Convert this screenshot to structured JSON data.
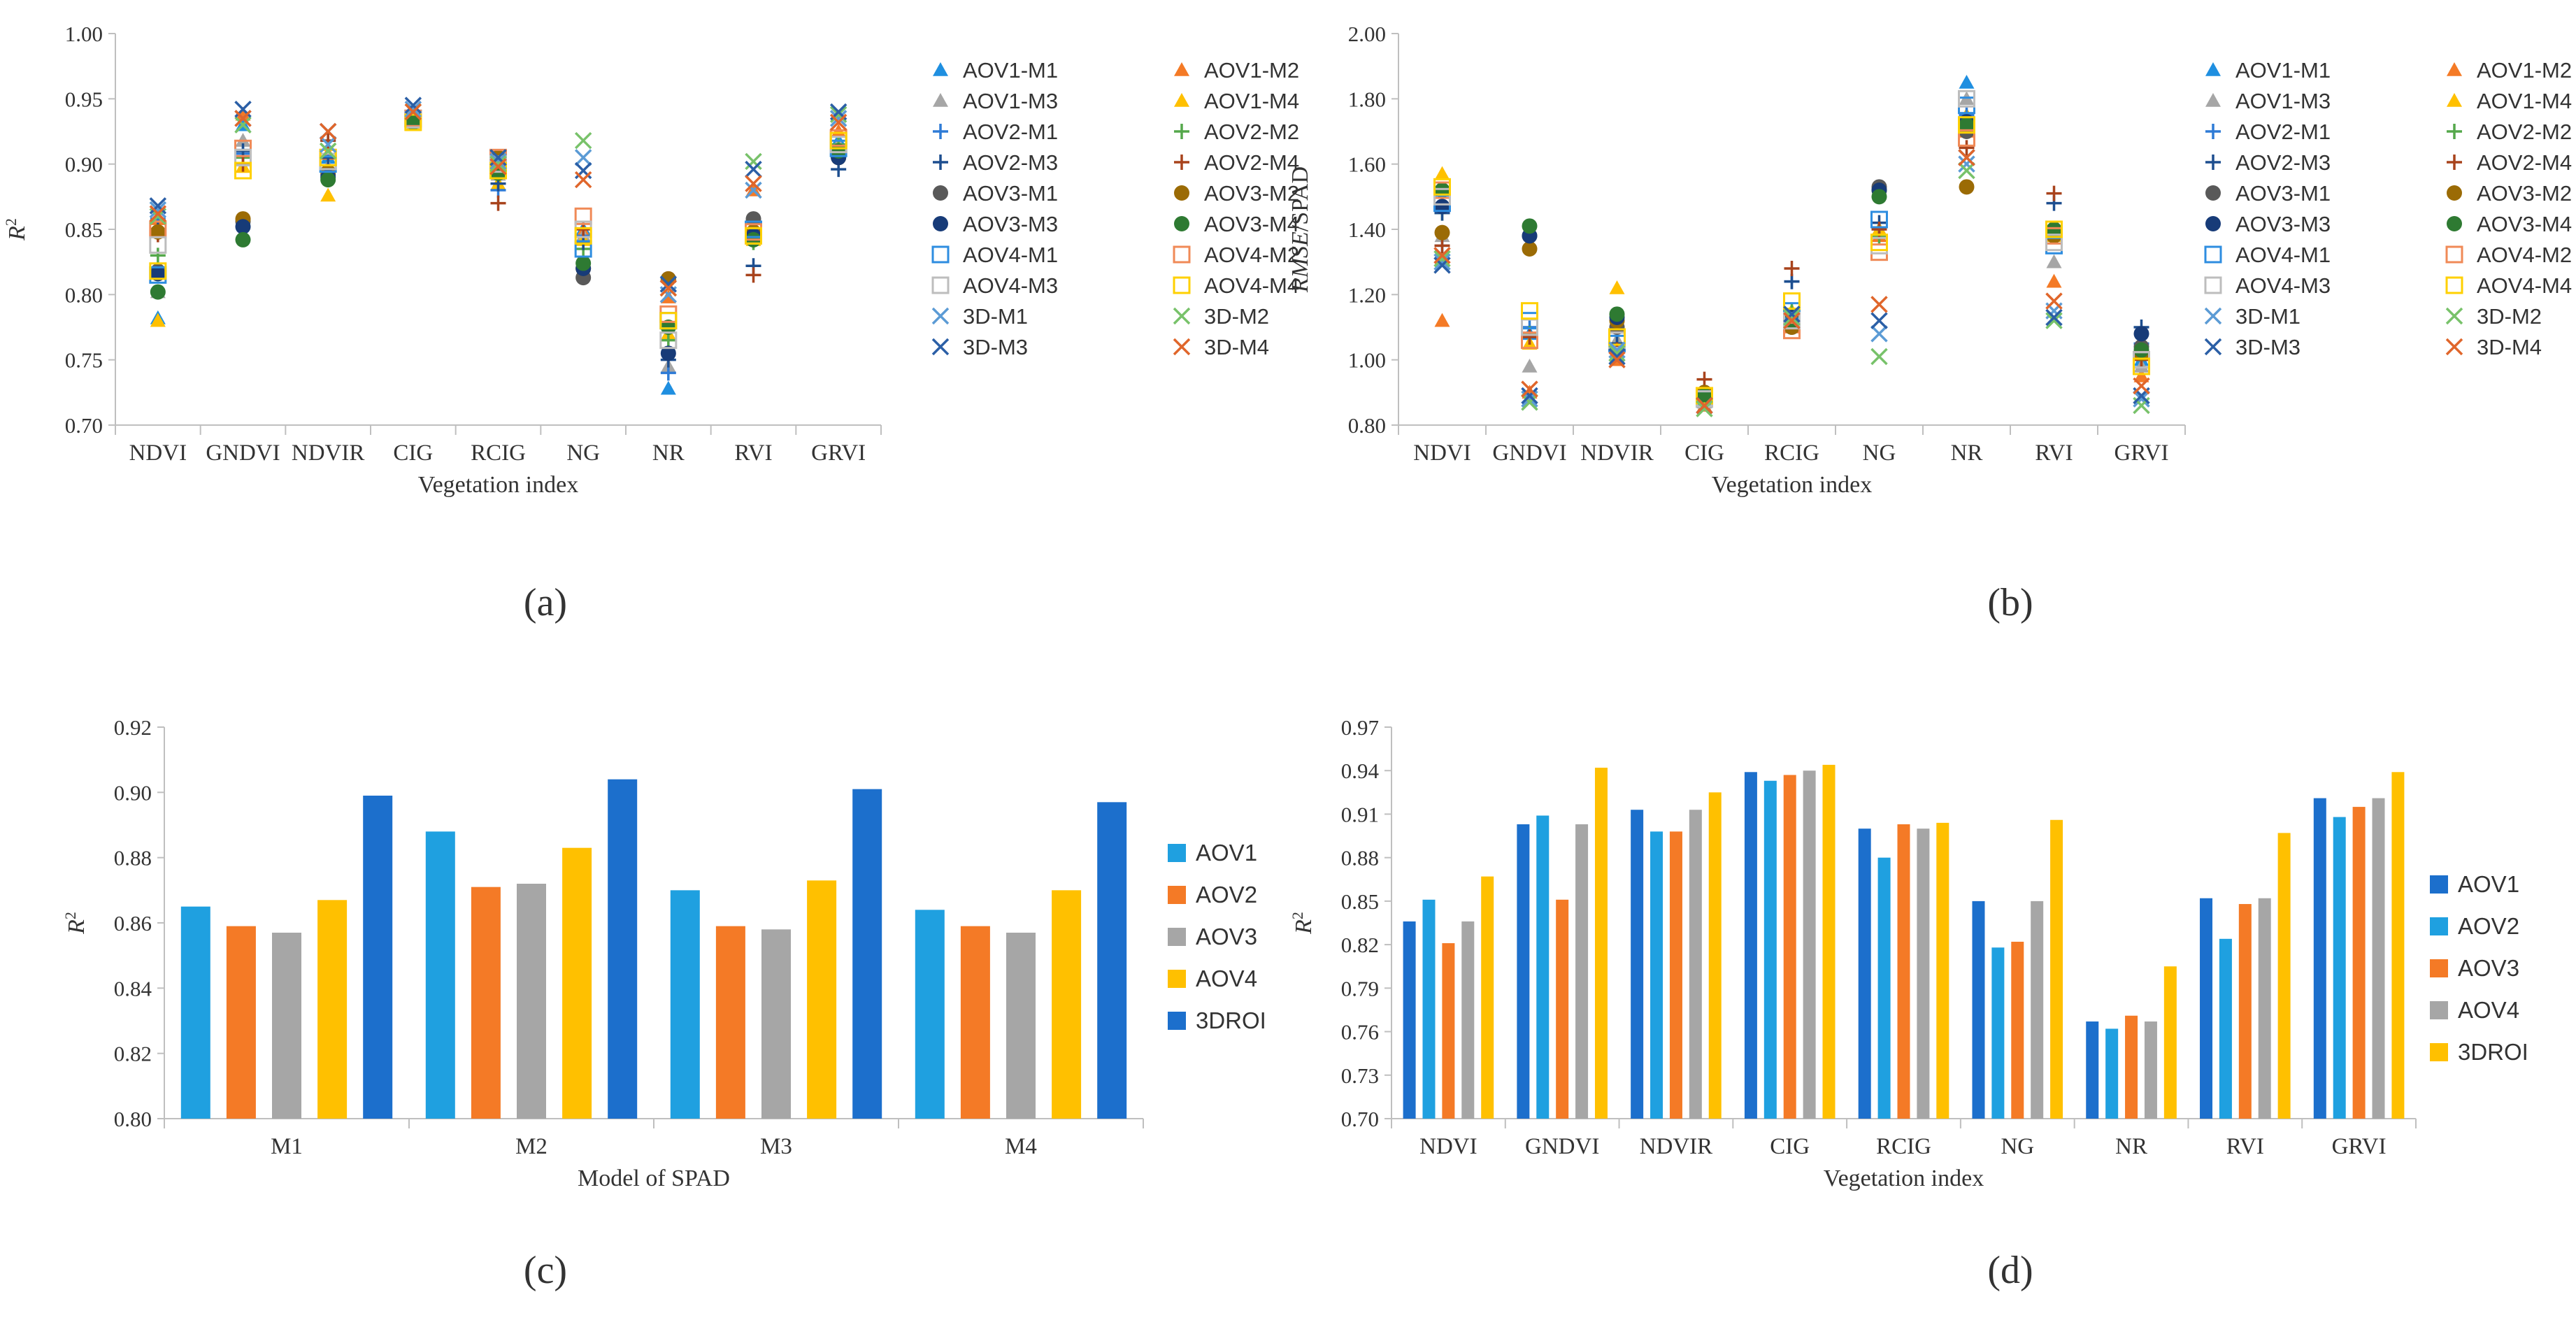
{
  "colors": {
    "AOV1-M1": "#1f8fe0",
    "AOV1-M2": "#f47a26",
    "AOV1-M3": "#a6a6a6",
    "AOV1-M4": "#ffc000",
    "AOV2-M1": "#2e7bd6",
    "AOV2-M2": "#55a84b",
    "AOV2-M3": "#1d4e8f",
    "AOV2-M4": "#a8431c",
    "AOV3-M1": "#595959",
    "AOV3-M2": "#9b6b05",
    "AOV3-M3": "#173b78",
    "AOV3-M4": "#2e7a32",
    "AOV4-M1": "#2e8de0",
    "AOV4-M2": "#f08a57",
    "AOV4-M3": "#bdbdbd",
    "AOV4-M4": "#ffd000",
    "3D-M1": "#5b9bd5",
    "3D-M2": "#78c26a",
    "3D-M3": "#2b5fa6",
    "3D-M4": "#e0662b",
    "bar_c": [
      "#1fa0e0",
      "#f47a26",
      "#a6a6a6",
      "#ffc000",
      "#1c6fcc"
    ],
    "bar_d": [
      "#1c6fcc",
      "#1fa0e0",
      "#f47a26",
      "#a6a6a6",
      "#ffc000"
    ],
    "axis": "#bfbfbf",
    "text": "#333333"
  },
  "chart_data": [
    {
      "panel": "a",
      "type": "scatter",
      "caption": "(a)",
      "ylabel_main": "R",
      "ylabel_sup": "2",
      "xlabel": "Vegetation index",
      "categories": [
        "NDVI",
        "GNDVI",
        "NDVIR",
        "CIG",
        "RCIG",
        "NG",
        "NR",
        "RVI",
        "GRVI"
      ],
      "ylim": [
        0.7,
        1.0
      ],
      "yticks": [
        "0.70",
        "0.75",
        "0.80",
        "0.85",
        "0.90",
        "0.95",
        "1.00"
      ],
      "legend": [
        "AOV1-M1",
        "AOV1-M2",
        "AOV1-M3",
        "AOV1-M4",
        "AOV2-M1",
        "AOV2-M2",
        "AOV2-M3",
        "AOV2-M4",
        "AOV3-M1",
        "AOV3-M2",
        "AOV3-M3",
        "AOV3-M4",
        "AOV4-M1",
        "AOV4-M2",
        "AOV4-M3",
        "AOV4-M4",
        "3D-M1",
        "3D-M2",
        "3D-M3",
        "3D-M4"
      ],
      "series": [
        {
          "name": "AOV1-M1",
          "marker": "triangle",
          "values": [
            0.782,
            0.93,
            0.905,
            0.94,
            0.895,
            0.85,
            0.728,
            0.848,
            0.918
          ]
        },
        {
          "name": "AOV1-M2",
          "marker": "triangle",
          "values": [
            0.858,
            0.938,
            0.908,
            0.938,
            0.902,
            0.848,
            0.798,
            0.88,
            0.925
          ]
        },
        {
          "name": "AOV1-M3",
          "marker": "triangle",
          "values": [
            0.802,
            0.918,
            0.898,
            0.935,
            0.892,
            0.845,
            0.745,
            0.858,
            0.915
          ]
        },
        {
          "name": "AOV1-M4",
          "marker": "triangle",
          "values": [
            0.78,
            0.898,
            0.876,
            0.93,
            0.885,
            0.842,
            0.77,
            0.842,
            0.91
          ]
        },
        {
          "name": "AOV2-M1",
          "marker": "plus",
          "values": [
            0.858,
            0.908,
            0.918,
            0.94,
            0.88,
            0.845,
            0.74,
            0.848,
            0.91
          ]
        },
        {
          "name": "AOV2-M2",
          "marker": "plus",
          "values": [
            0.83,
            0.905,
            0.896,
            0.935,
            0.89,
            0.835,
            0.765,
            0.84,
            0.915
          ]
        },
        {
          "name": "AOV2-M3",
          "marker": "plus",
          "values": [
            0.85,
            0.91,
            0.905,
            0.938,
            0.885,
            0.84,
            0.75,
            0.822,
            0.896
          ]
        },
        {
          "name": "AOV2-M4",
          "marker": "plus",
          "values": [
            0.846,
            0.9,
            0.918,
            0.932,
            0.87,
            0.85,
            0.81,
            0.815,
            0.908
          ]
        },
        {
          "name": "AOV3-M1",
          "marker": "circle",
          "values": [
            0.818,
            0.856,
            0.892,
            0.932,
            0.9,
            0.813,
            0.812,
            0.858,
            0.906
          ]
        },
        {
          "name": "AOV3-M2",
          "marker": "circle",
          "values": [
            0.848,
            0.858,
            0.894,
            0.935,
            0.905,
            0.82,
            0.812,
            0.848,
            0.905
          ]
        },
        {
          "name": "AOV3-M3",
          "marker": "circle",
          "values": [
            0.816,
            0.852,
            0.89,
            0.934,
            0.898,
            0.82,
            0.755,
            0.845,
            0.905
          ]
        },
        {
          "name": "AOV3-M4",
          "marker": "circle",
          "values": [
            0.802,
            0.842,
            0.888,
            0.932,
            0.893,
            0.824,
            0.775,
            0.842,
            0.91
          ]
        },
        {
          "name": "AOV4-M1",
          "marker": "square",
          "values": [
            0.815,
            0.905,
            0.9,
            0.935,
            0.895,
            0.835,
            0.78,
            0.85,
            0.912
          ]
        },
        {
          "name": "AOV4-M2",
          "marker": "square",
          "values": [
            0.85,
            0.912,
            0.905,
            0.935,
            0.905,
            0.86,
            0.785,
            0.848,
            0.92
          ]
        },
        {
          "name": "AOV4-M3",
          "marker": "square",
          "values": [
            0.838,
            0.905,
            0.902,
            0.934,
            0.9,
            0.85,
            0.765,
            0.845,
            0.915
          ]
        },
        {
          "name": "AOV4-M4",
          "marker": "square",
          "values": [
            0.818,
            0.895,
            0.905,
            0.932,
            0.895,
            0.845,
            0.78,
            0.845,
            0.918
          ]
        },
        {
          "name": "3D-M1",
          "marker": "x",
          "values": [
            0.865,
            0.935,
            0.915,
            0.942,
            0.902,
            0.905,
            0.8,
            0.88,
            0.935
          ]
        },
        {
          "name": "3D-M2",
          "marker": "x",
          "values": [
            0.86,
            0.93,
            0.91,
            0.94,
            0.9,
            0.918,
            0.805,
            0.902,
            0.938
          ]
        },
        {
          "name": "3D-M3",
          "marker": "x",
          "values": [
            0.868,
            0.942,
            0.925,
            0.945,
            0.905,
            0.895,
            0.808,
            0.896,
            0.94
          ]
        },
        {
          "name": "3D-M4",
          "marker": "x",
          "values": [
            0.862,
            0.935,
            0.925,
            0.94,
            0.898,
            0.888,
            0.805,
            0.885,
            0.932
          ]
        }
      ]
    },
    {
      "panel": "b",
      "type": "scatter",
      "caption": "(b)",
      "ylabel_main": "RMSE",
      "ylabel_suffix": "/SPAD",
      "xlabel": "Vegetation index",
      "categories": [
        "NDVI",
        "GNDVI",
        "NDVIR",
        "CIG",
        "RCIG",
        "NG",
        "NR",
        "RVI",
        "GRVI"
      ],
      "ylim": [
        0.8,
        2.0
      ],
      "yticks": [
        "0.80",
        "1.00",
        "1.20",
        "1.40",
        "1.60",
        "1.80",
        "2.00"
      ],
      "legend": [
        "AOV1-M1",
        "AOV1-M2",
        "AOV1-M3",
        "AOV1-M4",
        "AOV2-M1",
        "AOV2-M2",
        "AOV2-M3",
        "AOV2-M4",
        "AOV3-M1",
        "AOV3-M2",
        "AOV3-M3",
        "AOV3-M4",
        "AOV4-M1",
        "AOV4-M2",
        "AOV4-M3",
        "AOV4-M4",
        "3D-M1",
        "3D-M2",
        "3D-M3",
        "3D-M4"
      ],
      "series": [
        {
          "name": "AOV1-M1",
          "marker": "triangle",
          "values": [
            1.52,
            1.08,
            1.05,
            0.88,
            1.12,
            1.38,
            1.85,
            1.38,
            1.0
          ]
        },
        {
          "name": "AOV1-M2",
          "marker": "triangle",
          "values": [
            1.12,
            0.9,
            1.0,
            0.86,
            1.1,
            1.38,
            1.7,
            1.24,
            0.95
          ]
        },
        {
          "name": "AOV1-M3",
          "marker": "triangle",
          "values": [
            1.38,
            0.98,
            1.06,
            0.87,
            1.12,
            1.4,
            1.8,
            1.3,
            0.98
          ]
        },
        {
          "name": "AOV1-M4",
          "marker": "triangle",
          "values": [
            1.57,
            1.05,
            1.22,
            0.9,
            1.15,
            1.4,
            1.75,
            1.38,
            1.02
          ]
        },
        {
          "name": "AOV2-M1",
          "marker": "plus",
          "values": [
            1.35,
            1.1,
            1.05,
            0.88,
            1.24,
            1.4,
            1.75,
            1.38,
            1.05
          ]
        },
        {
          "name": "AOV2-M2",
          "marker": "plus",
          "values": [
            1.45,
            1.08,
            1.05,
            0.87,
            1.15,
            1.38,
            1.72,
            1.4,
            1.0
          ]
        },
        {
          "name": "AOV2-M3",
          "marker": "plus",
          "values": [
            1.45,
            1.07,
            1.05,
            0.87,
            1.24,
            1.42,
            1.72,
            1.48,
            1.1
          ]
        },
        {
          "name": "AOV2-M4",
          "marker": "plus",
          "values": [
            1.35,
            1.07,
            1.03,
            0.94,
            1.28,
            1.4,
            1.65,
            1.51,
            1.0
          ]
        },
        {
          "name": "AOV3-M1",
          "marker": "circle",
          "values": [
            1.52,
            1.38,
            1.1,
            0.9,
            1.1,
            1.53,
            1.7,
            1.38,
            1.04
          ]
        },
        {
          "name": "AOV3-M2",
          "marker": "circle",
          "values": [
            1.39,
            1.34,
            1.12,
            0.9,
            1.1,
            1.52,
            1.53,
            1.38,
            1.02
          ]
        },
        {
          "name": "AOV3-M3",
          "marker": "circle",
          "values": [
            1.47,
            1.38,
            1.13,
            0.88,
            1.13,
            1.52,
            1.73,
            1.4,
            1.08
          ]
        },
        {
          "name": "AOV3-M4",
          "marker": "circle",
          "values": [
            1.52,
            1.41,
            1.14,
            0.89,
            1.12,
            1.5,
            1.72,
            1.4,
            1.03
          ]
        },
        {
          "name": "AOV4-M1",
          "marker": "square",
          "values": [
            1.48,
            1.12,
            1.05,
            0.88,
            1.15,
            1.43,
            1.78,
            1.35,
            1.0
          ]
        },
        {
          "name": "AOV4-M2",
          "marker": "square",
          "values": [
            1.52,
            1.06,
            1.06,
            0.89,
            1.09,
            1.33,
            1.68,
            1.38,
            1.0
          ]
        },
        {
          "name": "AOV4-M3",
          "marker": "square",
          "values": [
            1.5,
            1.1,
            1.06,
            0.88,
            1.12,
            1.35,
            1.8,
            1.36,
            1.0
          ]
        },
        {
          "name": "AOV4-M4",
          "marker": "square",
          "values": [
            1.53,
            1.15,
            1.07,
            0.89,
            1.18,
            1.36,
            1.72,
            1.4,
            0.98
          ]
        },
        {
          "name": "3D-M1",
          "marker": "x",
          "values": [
            1.3,
            0.88,
            1.03,
            0.86,
            1.12,
            1.08,
            1.6,
            1.15,
            0.88
          ]
        },
        {
          "name": "3D-M2",
          "marker": "x",
          "values": [
            1.31,
            0.87,
            1.02,
            0.85,
            1.13,
            1.01,
            1.58,
            1.12,
            0.86
          ]
        },
        {
          "name": "3D-M3",
          "marker": "x",
          "values": [
            1.29,
            0.89,
            1.01,
            0.86,
            1.14,
            1.12,
            1.62,
            1.13,
            0.89
          ]
        },
        {
          "name": "3D-M4",
          "marker": "x",
          "values": [
            1.32,
            0.91,
            1.0,
            0.86,
            1.12,
            1.17,
            1.62,
            1.18,
            0.92
          ]
        }
      ]
    },
    {
      "panel": "c",
      "type": "bar",
      "caption": "(c)",
      "ylabel_main": "R",
      "ylabel_sup": "2",
      "xlabel": "Model of SPAD",
      "categories": [
        "M1",
        "M2",
        "M3",
        "M4"
      ],
      "ylim": [
        0.8,
        0.92
      ],
      "yticks": [
        "0.80",
        "0.82",
        "0.84",
        "0.86",
        "0.88",
        "0.90",
        "0.92"
      ],
      "series": [
        {
          "name": "AOV1",
          "values": [
            0.865,
            0.888,
            0.87,
            0.864
          ]
        },
        {
          "name": "AOV2",
          "values": [
            0.859,
            0.871,
            0.859,
            0.859
          ]
        },
        {
          "name": "AOV3",
          "values": [
            0.857,
            0.872,
            0.858,
            0.857
          ]
        },
        {
          "name": "AOV4",
          "values": [
            0.867,
            0.883,
            0.873,
            0.87
          ]
        },
        {
          "name": "3DROI",
          "values": [
            0.899,
            0.904,
            0.901,
            0.897
          ]
        }
      ]
    },
    {
      "panel": "d",
      "type": "bar",
      "caption": "(d)",
      "ylabel_main": "R",
      "ylabel_sup": "2",
      "xlabel": "Vegetation index",
      "categories": [
        "NDVI",
        "GNDVI",
        "NDVIR",
        "CIG",
        "RCIG",
        "NG",
        "NR",
        "RVI",
        "GRVI"
      ],
      "ylim": [
        0.7,
        0.97
      ],
      "yticks": [
        "0.70",
        "0.73",
        "0.76",
        "0.79",
        "0.82",
        "0.85",
        "0.88",
        "0.91",
        "0.94",
        "0.97"
      ],
      "series": [
        {
          "name": "AOV1",
          "values": [
            0.836,
            0.903,
            0.913,
            0.939,
            0.9,
            0.85,
            0.767,
            0.852,
            0.921
          ]
        },
        {
          "name": "AOV2",
          "values": [
            0.851,
            0.909,
            0.898,
            0.933,
            0.88,
            0.818,
            0.762,
            0.824,
            0.908
          ]
        },
        {
          "name": "AOV3",
          "values": [
            0.821,
            0.851,
            0.898,
            0.937,
            0.903,
            0.822,
            0.771,
            0.848,
            0.915
          ]
        },
        {
          "name": "AOV4",
          "values": [
            0.836,
            0.903,
            0.913,
            0.94,
            0.9,
            0.85,
            0.767,
            0.852,
            0.921
          ]
        },
        {
          "name": "3DROI",
          "values": [
            0.867,
            0.942,
            0.925,
            0.944,
            0.904,
            0.906,
            0.805,
            0.897,
            0.939
          ]
        }
      ]
    }
  ]
}
